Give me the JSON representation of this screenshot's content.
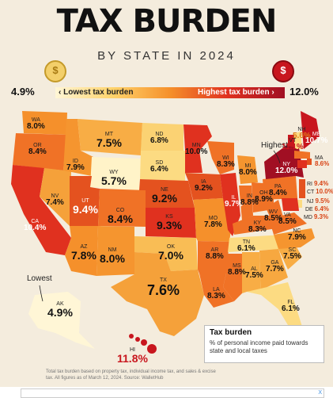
{
  "title": "TAX BURDEN",
  "subtitle": "BY STATE IN 2024",
  "legend": {
    "min": "4.9%",
    "max": "12.0%",
    "low_label": "Lowest tax burden",
    "high_label": "Highest tax burden",
    "low_coin_symbol": "$",
    "high_coin_symbol": "$"
  },
  "colors": {
    "background": "#f4ecdd",
    "lowest": "#fff6d6",
    "low": "#ffd36b",
    "mid": "#f5902b",
    "high": "#e0311f",
    "highest": "#a10f23"
  },
  "annotations": {
    "highest": "Highest",
    "lowest": "Lowest"
  },
  "states": {
    "WA": "8.0%",
    "OR": "8.4%",
    "CA": "10.4%",
    "NV": "7.4%",
    "ID": "7.9%",
    "MT": "7.5%",
    "WY": "5.7%",
    "UT": "9.4%",
    "AZ": "7.8%",
    "NM": "8.0%",
    "CO": "8.4%",
    "ND": "6.8%",
    "SD": "6.4%",
    "NE": "9.2%",
    "KS": "9.3%",
    "OK": "7.0%",
    "TX": "7.6%",
    "MN": "10.0%",
    "IA": "9.2%",
    "MO": "7.8%",
    "AR": "8.8%",
    "LA": "8.3%",
    "WI": "8.3%",
    "IL": "9.7%",
    "MS": "8.8%",
    "MI": "8.0%",
    "IN": "8.8%",
    "OH": "8.9%",
    "KY": "8.3%",
    "TN": "6.1%",
    "AL": "7.5%",
    "GA": "7.7%",
    "FL": "6.1%",
    "SC": "7.5%",
    "NC": "7.9%",
    "VA": "8.5%",
    "WV": "8.5%",
    "PA": "8.4%",
    "NY": "12.0%",
    "VT": "11.1%",
    "NH": "5.6%",
    "ME": "10.7%",
    "MA": "8.6%",
    "RI": "9.4%",
    "CT": "10.0%",
    "NJ": "9.5%",
    "DE": "6.4%",
    "MD": "9.3%",
    "AK": "4.9%",
    "HI": "11.8%"
  },
  "explainer": {
    "heading": "Tax burden",
    "text": "% of personal income paid towards state and local taxes"
  },
  "footer": "Total tax burden based on property tax, individual income tax, and sales & excise tax. All figures as of March 12, 2024. Source: WalletHub",
  "ad": {
    "close": "X"
  }
}
